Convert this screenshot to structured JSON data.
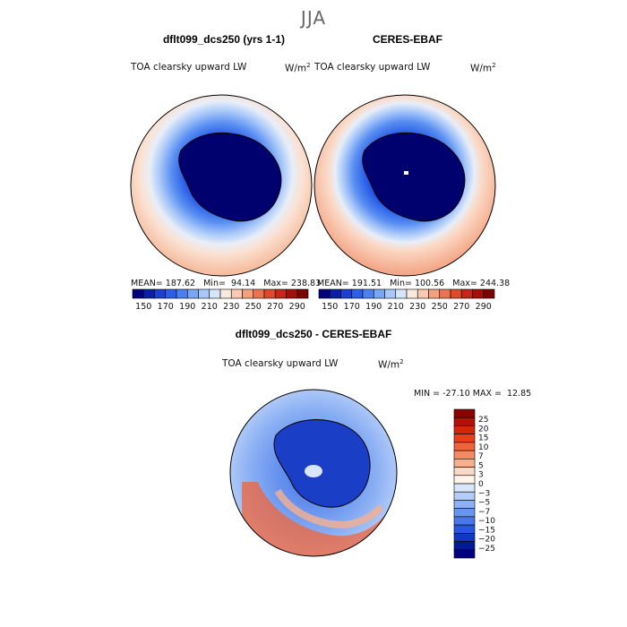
{
  "season": "JJA",
  "chart_data": [
    {
      "type": "heatmap",
      "title": "dflt099_dcs250 (yrs 1-1)",
      "variable": "TOA clearsky upward LW",
      "units": "W/m",
      "units_sup": "2",
      "stats": {
        "mean_label": "MEAN=",
        "mean": "187.62",
        "min_label": "Min=",
        "min": "94.14",
        "max_label": "Max=",
        "max": "238.83"
      },
      "colorbar": {
        "levels": [
          150,
          160,
          170,
          180,
          190,
          200,
          210,
          220,
          230,
          240,
          250,
          260,
          270,
          280,
          290
        ],
        "tick_labels": [
          "150",
          "170",
          "190",
          "210",
          "230",
          "250",
          "270",
          "290"
        ],
        "colors": [
          "#00007f",
          "#0a1fa6",
          "#1b3fd0",
          "#2a5fe8",
          "#4b80f2",
          "#79a6f7",
          "#a8c8f9",
          "#d6e6f8",
          "#fbe8de",
          "#f9c9b0",
          "#f4a17d",
          "#ec7350",
          "#de4a2a",
          "#c62617",
          "#a50f0a",
          "#7a0403"
        ]
      },
      "projection": "south polar stereographic"
    },
    {
      "type": "heatmap",
      "title": "CERES-EBAF",
      "variable": "TOA clearsky upward LW",
      "units": "W/m",
      "units_sup": "2",
      "stats": {
        "mean_label": "MEAN=",
        "mean": "191.51",
        "min_label": "Min=",
        "min": "100.56",
        "max_label": "Max=",
        "max": "244.38"
      },
      "colorbar": {
        "levels": [
          150,
          160,
          170,
          180,
          190,
          200,
          210,
          220,
          230,
          240,
          250,
          260,
          270,
          280,
          290
        ],
        "tick_labels": [
          "150",
          "170",
          "190",
          "210",
          "230",
          "250",
          "270",
          "290"
        ],
        "colors": [
          "#00007f",
          "#0a1fa6",
          "#1b3fd0",
          "#2a5fe8",
          "#4b80f2",
          "#79a6f7",
          "#a8c8f9",
          "#d6e6f8",
          "#fbe8de",
          "#f9c9b0",
          "#f4a17d",
          "#ec7350",
          "#de4a2a",
          "#c62617",
          "#a50f0a",
          "#7a0403"
        ]
      },
      "projection": "south polar stereographic"
    },
    {
      "type": "heatmap",
      "title": "dflt099_dcs250 - CERES-EBAF",
      "variable": "TOA clearsky upward LW",
      "units": "W/m",
      "units_sup": "2",
      "stats": {
        "min_label": "MIN =",
        "min": "-27.10",
        "max_label": "MAX =",
        "max": "12.85"
      },
      "colorbar": {
        "orientation": "vertical",
        "tick_labels": [
          "25",
          "20",
          "15",
          "10",
          "7",
          "5",
          "3",
          "0",
          "−3",
          "−5",
          "−7",
          "−10",
          "−15",
          "−20",
          "−25"
        ],
        "colors": [
          "#8b0000",
          "#b20f06",
          "#d4260d",
          "#e8401a",
          "#f0643a",
          "#f48a64",
          "#f6b090",
          "#fcd9c4",
          "#fff3ea",
          "#d8e6fb",
          "#b4cdf8",
          "#8db1f4",
          "#6a95ef",
          "#4777e8",
          "#2757db",
          "#1237c0",
          "#001a96",
          "#000080"
        ]
      },
      "projection": "south polar stereographic"
    }
  ]
}
